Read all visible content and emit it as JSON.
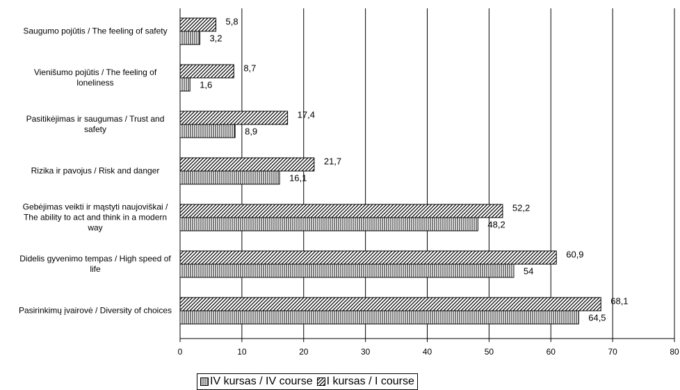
{
  "chart_data": {
    "type": "bar",
    "orientation": "horizontal",
    "categories": [
      "Saugumo pojūtis / The feeling of safety",
      "Vienišumo pojūtis / The feeling of loneliness",
      "Pasitikėjimas ir saugumas / Trust and safety",
      "Rizika ir pavojus / Risk and danger",
      "Gebėjimas veikti ir mąstyti naujoviškai / The ability to act and think in a modern way",
      "Didelis gyvenimo tempas / High speed of life",
      "Pasirinkimų įvairovė / Diversity of choices"
    ],
    "series": [
      {
        "name": "IV kursas / IV course",
        "color": "#000000",
        "pattern": "vertical",
        "values": [
          3.2,
          1.6,
          8.9,
          16.1,
          48.2,
          54,
          64.5
        ],
        "value_labels": [
          "3,2",
          "1,6",
          "8,9",
          "16,1",
          "48,2",
          "54",
          "64,5"
        ]
      },
      {
        "name": "I kursas / I course",
        "color": "#000000",
        "pattern": "diagonal",
        "values": [
          5.8,
          8.7,
          17.4,
          21.7,
          52.2,
          60.9,
          68.1
        ],
        "value_labels": [
          "5,8",
          "8,7",
          "17,4",
          "21,7",
          "52,2",
          "60,9",
          "68,1"
        ]
      }
    ],
    "xlim": [
      0,
      80
    ],
    "xticks": [
      0,
      10,
      20,
      30,
      40,
      50,
      60,
      70,
      80
    ],
    "grid": true,
    "legend": "bottom"
  }
}
